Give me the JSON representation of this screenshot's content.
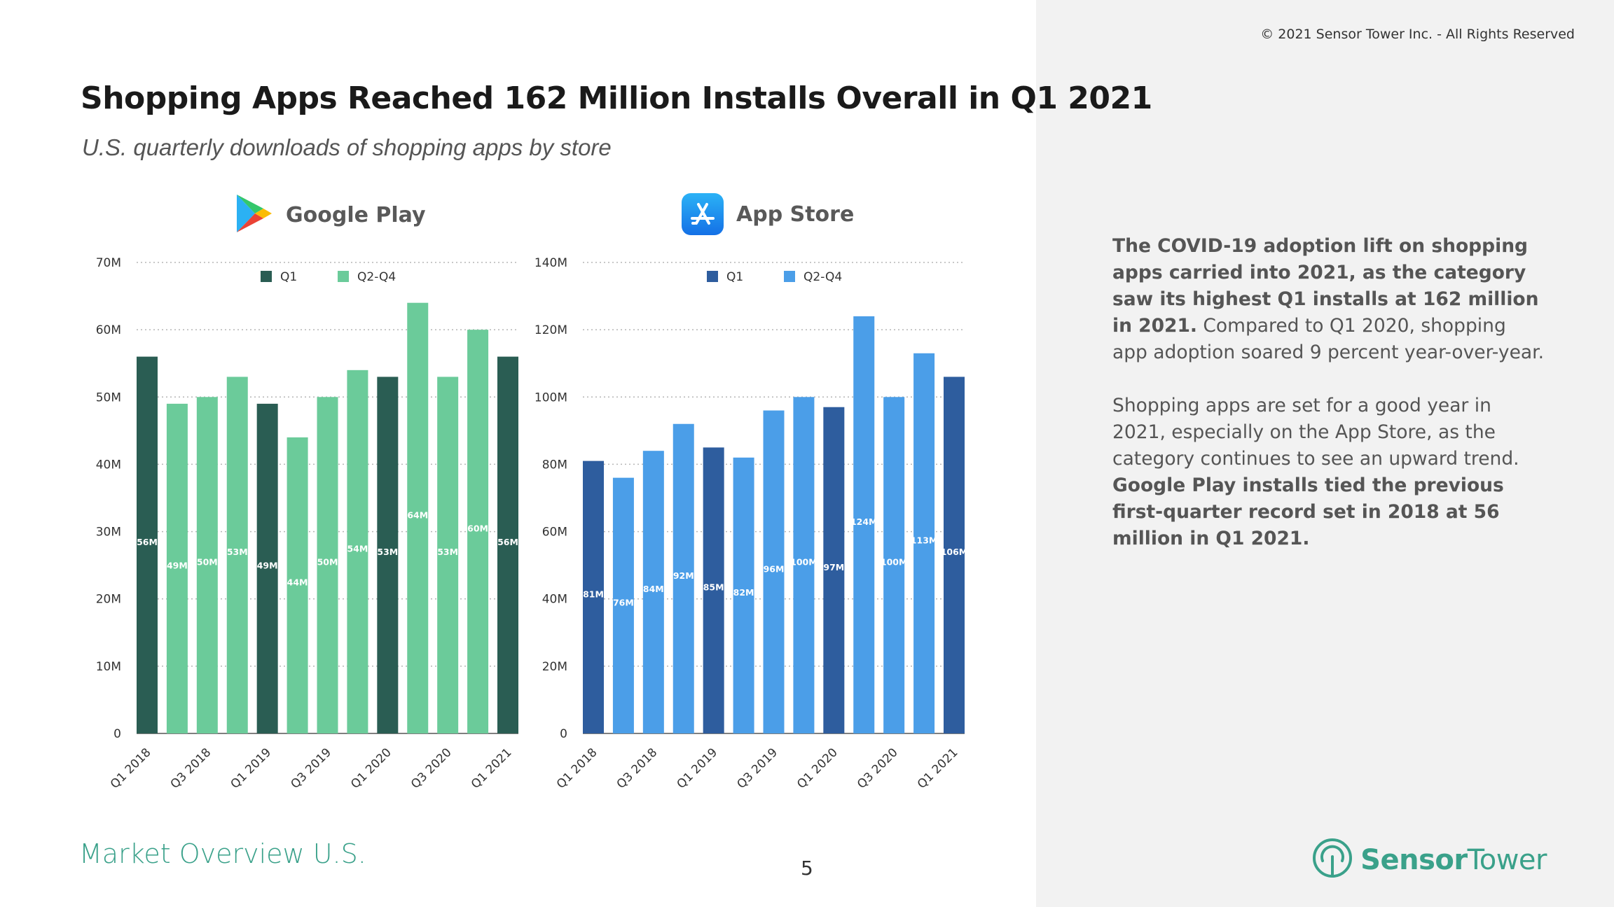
{
  "header": {
    "copyright": "© 2021 Sensor Tower Inc. - All Rights Reserved",
    "title": "Shopping Apps Reached 162 Million Installs Overall in Q1 2021",
    "subtitle": "U.S. quarterly downloads of shopping apps by store"
  },
  "stores": {
    "google_play": {
      "name": "Google Play",
      "icon": "google-play-icon"
    },
    "app_store": {
      "name": "App Store",
      "icon": "app-store-icon"
    }
  },
  "chart_data": [
    {
      "type": "bar",
      "title": "Google Play",
      "categories": [
        "Q1 2018",
        "Q2 2018",
        "Q3 2018",
        "Q4 2018",
        "Q1 2019",
        "Q2 2019",
        "Q3 2019",
        "Q4 2019",
        "Q1 2020",
        "Q2 2020",
        "Q3 2020",
        "Q4 2020",
        "Q1 2021"
      ],
      "tick_labels": [
        "Q1 2018",
        "",
        "Q3 2018",
        "",
        "Q1 2019",
        "",
        "Q3 2019",
        "",
        "Q1 2020",
        "",
        "Q3 2020",
        "",
        "Q1 2021"
      ],
      "values": [
        56,
        49,
        50,
        53,
        49,
        44,
        50,
        54,
        53,
        64,
        53,
        60,
        56
      ],
      "data_labels": [
        "56M",
        "49M",
        "50M",
        "53M",
        "49M",
        "44M",
        "50M",
        "54M",
        "53M",
        "64M",
        "53M",
        "60M",
        "56M"
      ],
      "series_of_bar": [
        "Q1",
        "Q2-Q4",
        "Q2-Q4",
        "Q2-Q4",
        "Q1",
        "Q2-Q4",
        "Q2-Q4",
        "Q2-Q4",
        "Q1",
        "Q2-Q4",
        "Q2-Q4",
        "Q2-Q4",
        "Q1"
      ],
      "legend": [
        {
          "name": "Q1",
          "color": "#2a5d53"
        },
        {
          "name": "Q2-Q4",
          "color": "#6bcb9a"
        }
      ],
      "legend_position": "top",
      "ylim": [
        0,
        70
      ],
      "yticks": [
        0,
        10,
        20,
        30,
        40,
        50,
        60,
        70
      ],
      "ytick_labels": [
        "0",
        "10M",
        "20M",
        "30M",
        "40M",
        "50M",
        "60M",
        "70M"
      ],
      "grid": true
    },
    {
      "type": "bar",
      "title": "App Store",
      "categories": [
        "Q1 2018",
        "Q2 2018",
        "Q3 2018",
        "Q4 2018",
        "Q1 2019",
        "Q2 2019",
        "Q3 2019",
        "Q4 2019",
        "Q1 2020",
        "Q2 2020",
        "Q3 2020",
        "Q4 2020",
        "Q1 2021"
      ],
      "tick_labels": [
        "Q1 2018",
        "",
        "Q3 2018",
        "",
        "Q1 2019",
        "",
        "Q3 2019",
        "",
        "Q1 2020",
        "",
        "Q3 2020",
        "",
        "Q1 2021"
      ],
      "values": [
        81,
        76,
        84,
        92,
        85,
        82,
        96,
        100,
        97,
        124,
        100,
        113,
        106
      ],
      "data_labels": [
        "81M",
        "76M",
        "84M",
        "92M",
        "85M",
        "82M",
        "96M",
        "100M",
        "97M",
        "124M",
        "100M",
        "113M",
        "106M"
      ],
      "series_of_bar": [
        "Q1",
        "Q2-Q4",
        "Q2-Q4",
        "Q2-Q4",
        "Q1",
        "Q2-Q4",
        "Q2-Q4",
        "Q2-Q4",
        "Q1",
        "Q2-Q4",
        "Q2-Q4",
        "Q2-Q4",
        "Q1"
      ],
      "legend": [
        {
          "name": "Q1",
          "color": "#2e5d9e"
        },
        {
          "name": "Q2-Q4",
          "color": "#4b9ee8"
        }
      ],
      "legend_position": "top",
      "ylim": [
        0,
        140
      ],
      "yticks": [
        0,
        20,
        40,
        60,
        80,
        100,
        120,
        140
      ],
      "ytick_labels": [
        "0",
        "20M",
        "40M",
        "60M",
        "80M",
        "100M",
        "120M",
        "140M"
      ],
      "grid": true
    }
  ],
  "commentary": {
    "p1_bold": "The COVID-19 adoption lift on shopping apps carried into 2021, as the category saw its highest Q1 installs at 162 million in 2021.",
    "p1_rest": " Compared to Q1 2020, shopping app adoption soared 9 percent year-over-year.",
    "p2_start": "Shopping apps are set for a good year in 2021, especially on the App Store, as the category continues to see an upward trend. ",
    "p2_bold": "Google Play installs tied the previous first-quarter record set in 2018 at 56 million in Q1 2021."
  },
  "footer": {
    "section": "Market Overview U.S.",
    "page": "5",
    "brand_part1": "Sensor",
    "brand_part2": "Tower"
  }
}
